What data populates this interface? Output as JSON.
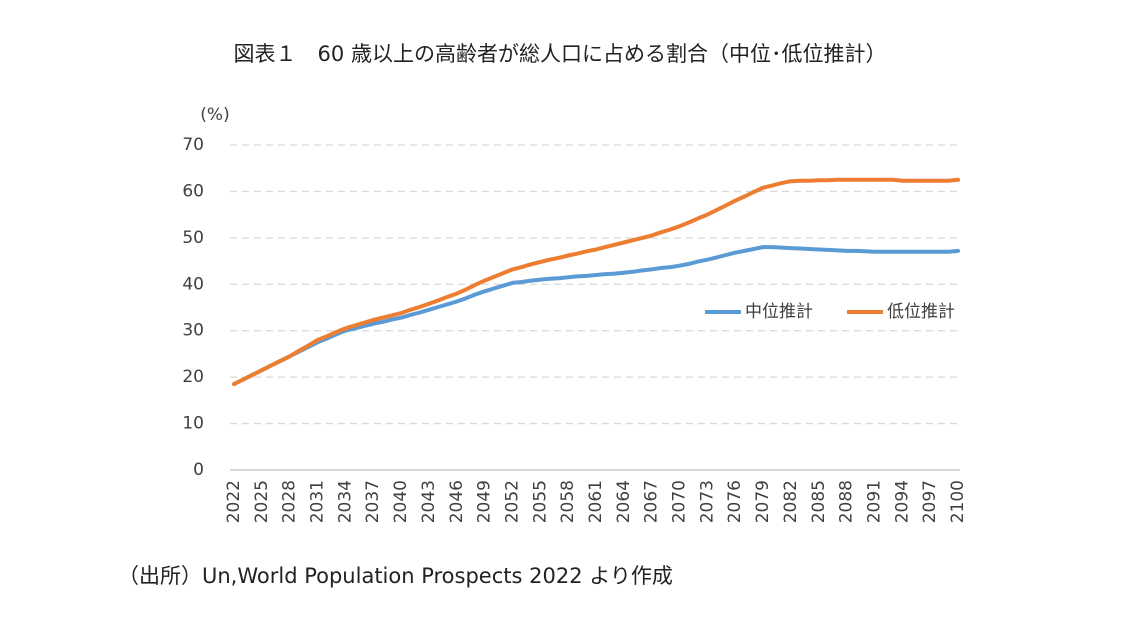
{
  "chart_data": {
    "type": "line",
    "title": "図表１　60 歳以上の高齢者が総人口に占める割合（中位･低位推計）",
    "y_label": "(%)",
    "source": "（出所）Un,World Population Prospects 2022 より作成",
    "x": [
      2022,
      2023,
      2024,
      2025,
      2026,
      2027,
      2028,
      2029,
      2030,
      2031,
      2032,
      2033,
      2034,
      2035,
      2036,
      2037,
      2038,
      2039,
      2040,
      2041,
      2042,
      2043,
      2044,
      2045,
      2046,
      2047,
      2048,
      2049,
      2050,
      2051,
      2052,
      2053,
      2054,
      2055,
      2056,
      2057,
      2058,
      2059,
      2060,
      2061,
      2062,
      2063,
      2064,
      2065,
      2066,
      2067,
      2068,
      2069,
      2070,
      2071,
      2072,
      2073,
      2074,
      2075,
      2076,
      2077,
      2078,
      2079,
      2080,
      2081,
      2082,
      2083,
      2084,
      2085,
      2086,
      2087,
      2088,
      2089,
      2090,
      2091,
      2092,
      2093,
      2094,
      2095,
      2096,
      2097,
      2098,
      2099,
      2100
    ],
    "xlim": [
      2022,
      2100
    ],
    "xticks": [
      2022,
      2025,
      2028,
      2031,
      2034,
      2037,
      2040,
      2043,
      2046,
      2049,
      2052,
      2055,
      2058,
      2061,
      2064,
      2067,
      2070,
      2073,
      2076,
      2079,
      2082,
      2085,
      2088,
      2091,
      2094,
      2097,
      2100
    ],
    "ylim": [
      0,
      70
    ],
    "yticks": [
      0,
      10,
      20,
      30,
      40,
      50,
      60,
      70
    ],
    "grid": true,
    "legend": "right",
    "series": [
      {
        "name": "中位推計",
        "color": "#5b9bd5",
        "values": [
          18.5,
          19.5,
          20.5,
          21.5,
          22.5,
          23.5,
          24.5,
          25.5,
          26.5,
          27.5,
          28.3,
          29.2,
          30.0,
          30.5,
          31.0,
          31.5,
          31.9,
          32.4,
          32.8,
          33.4,
          33.9,
          34.5,
          35.1,
          35.7,
          36.3,
          37.0,
          37.8,
          38.5,
          39.1,
          39.7,
          40.3,
          40.5,
          40.8,
          41.0,
          41.2,
          41.3,
          41.5,
          41.7,
          41.8,
          42.0,
          42.2,
          42.3,
          42.5,
          42.7,
          43.0,
          43.2,
          43.5,
          43.7,
          44.0,
          44.4,
          44.9,
          45.3,
          45.8,
          46.3,
          46.8,
          47.2,
          47.6,
          48.0,
          48.0,
          47.9,
          47.8,
          47.7,
          47.6,
          47.5,
          47.4,
          47.3,
          47.2,
          47.2,
          47.1,
          47.0,
          47.0,
          47.0,
          47.0,
          47.0,
          47.0,
          47.0,
          47.0,
          47.0,
          47.2
        ]
      },
      {
        "name": "低位推計",
        "color": "#ed7d31",
        "values": [
          18.5,
          19.5,
          20.5,
          21.5,
          22.5,
          23.5,
          24.5,
          25.7,
          26.8,
          28.0,
          28.8,
          29.7,
          30.5,
          31.1,
          31.7,
          32.3,
          32.8,
          33.3,
          33.8,
          34.5,
          35.1,
          35.8,
          36.5,
          37.3,
          38.0,
          38.9,
          39.9,
          40.8,
          41.6,
          42.4,
          43.2,
          43.7,
          44.3,
          44.8,
          45.3,
          45.7,
          46.2,
          46.6,
          47.1,
          47.5,
          48.0,
          48.5,
          49.0,
          49.5,
          50.0,
          50.5,
          51.2,
          51.8,
          52.5,
          53.3,
          54.2,
          55.0,
          56.0,
          57.0,
          58.0,
          58.9,
          59.9,
          60.8,
          61.3,
          61.8,
          62.2,
          62.3,
          62.3,
          62.4,
          62.4,
          62.5,
          62.5,
          62.5,
          62.5,
          62.5,
          62.5,
          62.5,
          62.3,
          62.3,
          62.3,
          62.3,
          62.3,
          62.3,
          62.5
        ]
      }
    ]
  }
}
